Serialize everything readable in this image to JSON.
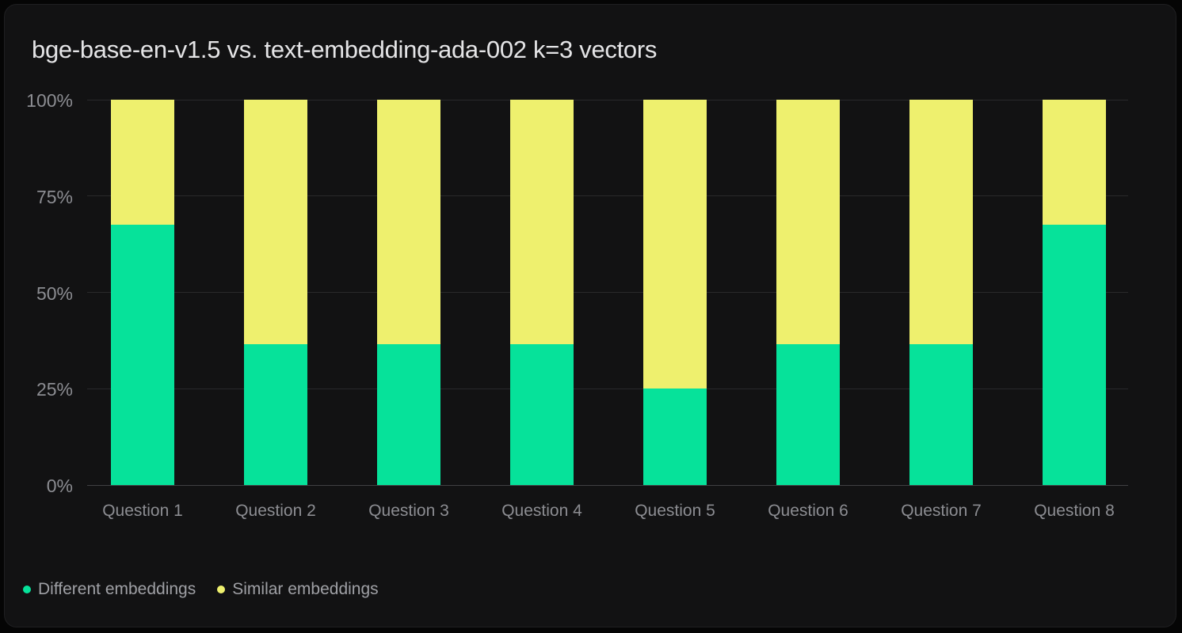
{
  "page": {
    "background": "#050505",
    "card_background": "#121213",
    "gridline_color": "#29292b",
    "axis_line_color": "#404043",
    "title_color": "#e4e4e6",
    "axis_label_color": "#8c8d92",
    "legend_label_color": "#9fa0a5"
  },
  "chart_data": {
    "type": "bar",
    "variant": "stacked-100-percent",
    "title": "bge-base-en-v1.5 vs. text-embedding-ada-002 k=3 vectors",
    "categories": [
      "Question 1",
      "Question 2",
      "Question 3",
      "Question 4",
      "Question 5",
      "Question 6",
      "Question 7",
      "Question 8"
    ],
    "series": [
      {
        "name": "Different embeddings",
        "color": "#06e29a",
        "values": [
          67.5,
          36.5,
          36.5,
          36.5,
          25,
          36.5,
          36.5,
          67.5
        ]
      },
      {
        "name": "Similar embeddings",
        "color": "#eef06e",
        "values": [
          32.5,
          63.5,
          63.5,
          63.5,
          75,
          63.5,
          63.5,
          32.5
        ]
      }
    ],
    "xlabel": "",
    "ylabel": "",
    "ylim": [
      0,
      100
    ],
    "y_ticks": [
      {
        "value": 100,
        "label": "100%"
      },
      {
        "value": 75,
        "label": "75%"
      },
      {
        "value": 50,
        "label": "50%"
      },
      {
        "value": 25,
        "label": "25%"
      },
      {
        "value": 0,
        "label": "0%"
      }
    ],
    "grid": true,
    "legend_position": "bottom-left"
  }
}
